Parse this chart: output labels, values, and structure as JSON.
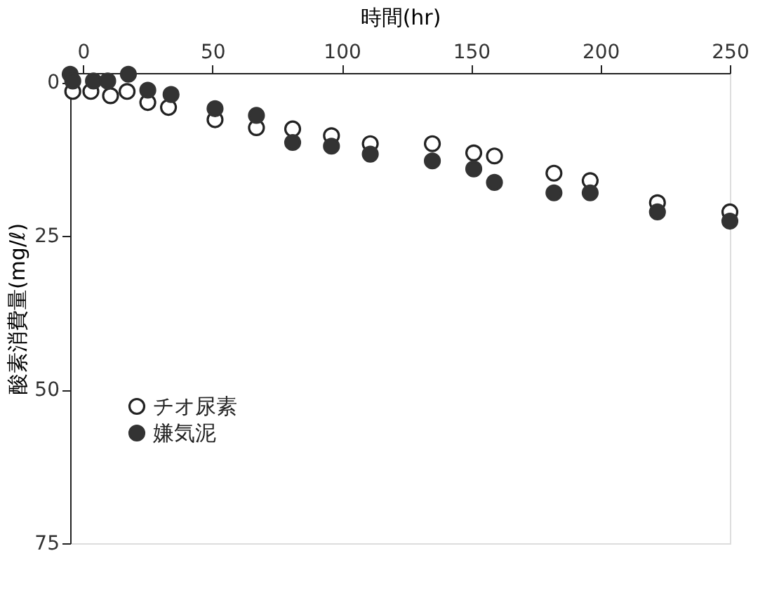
{
  "chart_data": {
    "type": "scatter",
    "xlabel": "時間(hr)",
    "ylabel": "酸素消費量(mg/ℓ)",
    "xlim": [
      -5,
      250
    ],
    "xticks": [
      0,
      50,
      100,
      150,
      200,
      250
    ],
    "ylim": [
      75,
      -1.5
    ],
    "yticks": [
      0,
      25,
      50,
      75
    ],
    "grid": false,
    "legend": "left",
    "marker": "circle",
    "series": [
      {
        "name": "チオ尿素",
        "color": "#222222",
        "x": [
          -4,
          3,
          10.6,
          17,
          25,
          33,
          51,
          67,
          81,
          96,
          111,
          135,
          151,
          159,
          182,
          196,
          222,
          250
        ],
        "values": [
          1.5,
          1.5,
          2.2,
          1.5,
          3.3,
          4.1,
          6.1,
          7.4,
          7.6,
          8.7,
          10,
          10,
          11.5,
          12,
          14.8,
          16,
          19.6,
          21.1
        ]
      },
      {
        "name": "嫌気泥",
        "color": "#333333",
        "x": [
          -5,
          -4,
          4,
          9.5,
          17.5,
          25,
          34,
          51,
          67,
          81,
          96,
          111,
          135,
          151,
          159,
          182,
          196,
          222,
          250
        ],
        "values": [
          -1.3,
          -0.2,
          -0.2,
          -0.2,
          -1.3,
          1.3,
          2,
          4.3,
          5.4,
          9.8,
          10.4,
          11.7,
          12.8,
          14.1,
          16.3,
          18,
          18,
          21.1,
          22.6
        ]
      }
    ]
  }
}
